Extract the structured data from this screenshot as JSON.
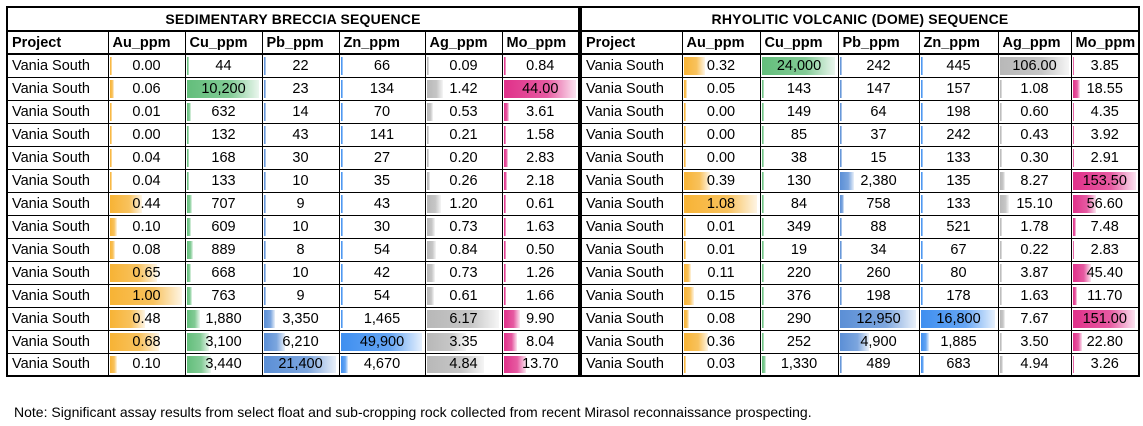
{
  "headers": [
    "Project",
    "Au_ppm",
    "Cu_ppm",
    "Pb_ppm",
    "Zn_ppm",
    "Ag_ppm",
    "Mo_ppm"
  ],
  "colors": {
    "Au_ppm": "#f7b335",
    "Cu_ppm": "#63be7b",
    "Pb_ppm": "#5b8fd6",
    "Zn_ppm": "#3f8ff0",
    "Ag_ppm": "#b8b8b8",
    "Mo_ppm": "#e0318a"
  },
  "tables": [
    {
      "title": "SEDIMENTARY BRECCIA SEQUENCE",
      "rows": [
        [
          "Vania South",
          "0.00",
          "44",
          "22",
          "66",
          "0.09",
          "0.84"
        ],
        [
          "Vania South",
          "0.06",
          "10,200",
          "23",
          "134",
          "1.42",
          "44.00"
        ],
        [
          "Vania South",
          "0.01",
          "632",
          "14",
          "70",
          "0.53",
          "3.61"
        ],
        [
          "Vania South",
          "0.00",
          "132",
          "43",
          "141",
          "0.21",
          "1.58"
        ],
        [
          "Vania South",
          "0.04",
          "168",
          "30",
          "27",
          "0.20",
          "2.83"
        ],
        [
          "Vania South",
          "0.04",
          "133",
          "10",
          "35",
          "0.26",
          "2.18"
        ],
        [
          "Vania South",
          "0.44",
          "707",
          "9",
          "43",
          "1.20",
          "0.61"
        ],
        [
          "Vania South",
          "0.10",
          "609",
          "10",
          "30",
          "0.73",
          "1.63"
        ],
        [
          "Vania South",
          "0.08",
          "889",
          "8",
          "54",
          "0.84",
          "0.50"
        ],
        [
          "Vania South",
          "0.65",
          "668",
          "10",
          "42",
          "0.73",
          "1.26"
        ],
        [
          "Vania South",
          "1.00",
          "763",
          "9",
          "54",
          "0.61",
          "1.66"
        ],
        [
          "Vania South",
          "0.48",
          "1,880",
          "3,350",
          "1,465",
          "6.17",
          "9.90"
        ],
        [
          "Vania South",
          "0.68",
          "3,100",
          "6,210",
          "49,900",
          "3.35",
          "8.04"
        ],
        [
          "Vania South",
          "0.10",
          "3,440",
          "21,400",
          "4,670",
          "4.84",
          "13.70"
        ]
      ]
    },
    {
      "title": "RHYOLITIC  VOLCANIC (DOME) SEQUENCE",
      "rows": [
        [
          "Vania South",
          "0.32",
          "24,000",
          "242",
          "445",
          "106.00",
          "3.85"
        ],
        [
          "Vania South",
          "0.05",
          "143",
          "147",
          "157",
          "1.08",
          "18.55"
        ],
        [
          "Vania South",
          "0.00",
          "149",
          "64",
          "198",
          "0.60",
          "4.35"
        ],
        [
          "Vania South",
          "0.00",
          "85",
          "37",
          "242",
          "0.43",
          "3.92"
        ],
        [
          "Vania South",
          "0.00",
          "38",
          "15",
          "133",
          "0.30",
          "2.91"
        ],
        [
          "Vania South",
          "0.39",
          "130",
          "2,380",
          "135",
          "8.27",
          "153.50"
        ],
        [
          "Vania South",
          "1.08",
          "84",
          "758",
          "133",
          "15.10",
          "56.60"
        ],
        [
          "Vania South",
          "0.01",
          "349",
          "88",
          "521",
          "1.78",
          "7.48"
        ],
        [
          "Vania South",
          "0.01",
          "19",
          "34",
          "67",
          "0.22",
          "2.83"
        ],
        [
          "Vania South",
          "0.11",
          "220",
          "260",
          "80",
          "3.87",
          "45.40"
        ],
        [
          "Vania South",
          "0.15",
          "376",
          "198",
          "178",
          "1.63",
          "11.70"
        ],
        [
          "Vania South",
          "0.08",
          "290",
          "12,950",
          "16,800",
          "7.67",
          "151.00"
        ],
        [
          "Vania South",
          "0.36",
          "252",
          "4,900",
          "1,885",
          "3.50",
          "22.80"
        ],
        [
          "Vania South",
          "0.03",
          "1,330",
          "489",
          "683",
          "4.94",
          "3.26"
        ]
      ]
    }
  ],
  "note": "Note: Significant assay results from select float and sub-cropping rock collected from recent Mirasol reconnaissance prospecting."
}
